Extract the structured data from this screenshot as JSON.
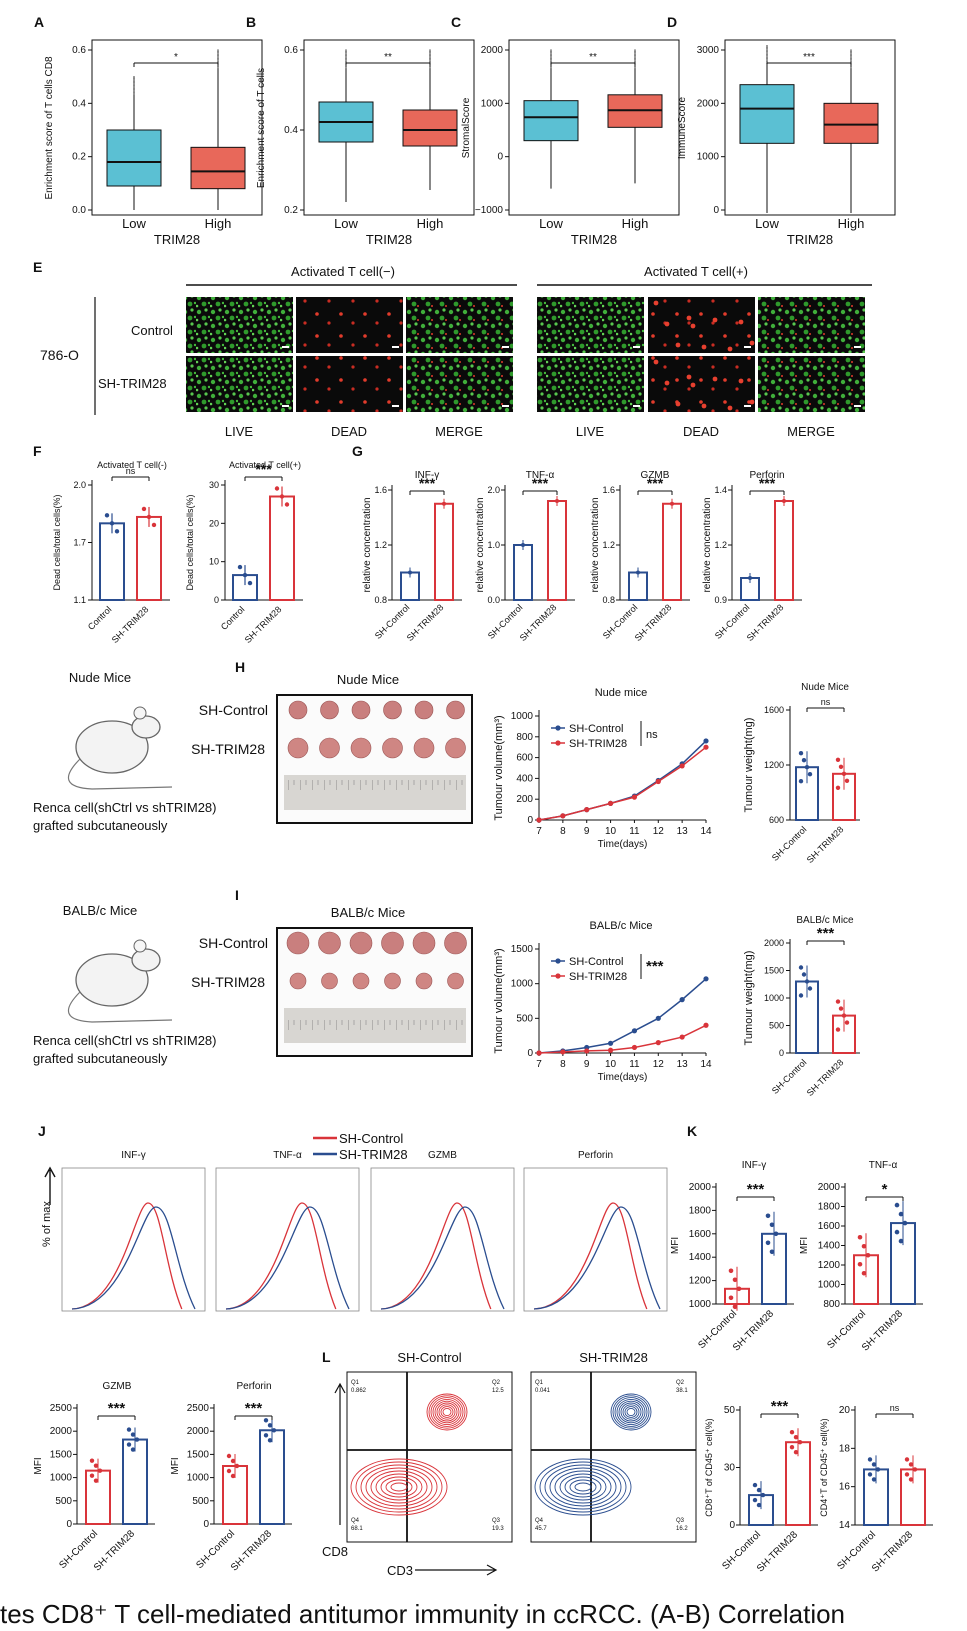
{
  "panels": {
    "A": {
      "letter": "A",
      "ylabel": "Enrichment score of T cells CD8",
      "ticks": [
        "0.6",
        "0.4",
        "0.2",
        "0.0"
      ],
      "xcats": [
        "Low",
        "High"
      ],
      "xlabel": "TRIM28",
      "sig": "*"
    },
    "B": {
      "letter": "B",
      "ylabel": "Enrichment score of T cells",
      "ticks": [
        "0.6",
        "0.4",
        "0.2"
      ],
      "xcats": [
        "Low",
        "High"
      ],
      "xlabel": "TRIM28",
      "sig": "**"
    },
    "C": {
      "letter": "C",
      "ylabel": "StromalScore",
      "ticks": [
        "2000",
        "1000",
        "0",
        "−1000"
      ],
      "xcats": [
        "Low",
        "High"
      ],
      "xlabel": "TRIM28",
      "sig": "**"
    },
    "D": {
      "letter": "D",
      "ylabel": "ImmuneScore",
      "ticks": [
        "3000",
        "2000",
        "1000",
        "0"
      ],
      "xcats": [
        "Low",
        "High"
      ],
      "xlabel": "TRIM28",
      "sig": "***"
    },
    "E": {
      "letter": "E",
      "group_neg": "Activated T cell(−)",
      "group_pos": "Activated T cell(+)",
      "cell_line": "786-O",
      "rows": [
        "Control",
        "SH-TRIM28"
      ],
      "cols": [
        "LIVE",
        "DEAD",
        "MERGE",
        "LIVE",
        "DEAD",
        "MERGE"
      ]
    },
    "F": {
      "letter": "F",
      "ylabel": "Dead cells/total cells(%)",
      "sub1_title": "Activated T cell(-)",
      "sub2_title": "Activated T cell(+)",
      "sub1_ticks": [
        "2.0",
        "1.7",
        "1.1"
      ],
      "sub2_ticks": [
        "30",
        "20",
        "10",
        "0"
      ],
      "sub1_sig": "ns",
      "sub2_sig": "***",
      "xcats": [
        "Control",
        "SH-TRIM28"
      ]
    },
    "G": {
      "letter": "G",
      "ylabel": "relative concentration",
      "titles": [
        "INF-γ",
        "TNF-α",
        "GZMB",
        "Perforin"
      ],
      "ticks": [
        [
          "1.6",
          "1.2",
          "0.8"
        ],
        [
          "2.0",
          "1.0",
          "0.0"
        ],
        [
          "1.6",
          "1.2",
          "0.8"
        ],
        [
          "1.4",
          "1.2",
          "0.9"
        ]
      ],
      "sig": "***",
      "xcats": [
        "SH-Control",
        "SH-TRIM28"
      ]
    },
    "H": {
      "letter": "H",
      "mouse_title": "Nude Mice",
      "photo_title": "Nude Mice",
      "photo_rows": [
        "SH-Control",
        "SH-TRIM28"
      ],
      "graft_line1": "Renca cell(shCtrl vs shTRIM28)",
      "graft_line2": "grafted subcutaneously",
      "line_title": "Nude mice",
      "line_ylabel": "Tumour volume(mm³)",
      "line_xlabel": "Time(days)",
      "line_sig": "ns",
      "bar_title": "Nude Mice",
      "bar_ylabel": "Tumour weight(mg)",
      "bar_sig": "ns",
      "bar_ticks": [
        "1600",
        "1200",
        "600"
      ],
      "line_yticks": [
        "1000",
        "800",
        "600",
        "400",
        "200",
        "0"
      ]
    },
    "I": {
      "letter": "I",
      "mouse_title": "BALB/c Mice",
      "photo_title": "BALB/c Mice",
      "photo_rows": [
        "SH-Control",
        "SH-TRIM28"
      ],
      "graft_line1": "Renca cell(shCtrl vs shTRIM28)",
      "graft_line2": "grafted subcutaneously",
      "line_title": "BALB/c Mice",
      "line_ylabel": "Tumour volume(mm³)",
      "line_xlabel": "Time(days)",
      "line_sig": "***",
      "bar_title": "BALB/c Mice",
      "bar_ylabel": "Tumour weight(mg)",
      "bar_sig": "***",
      "bar_ticks": [
        "2000",
        "1500",
        "1000",
        "500",
        "0"
      ],
      "line_yticks": [
        "1500",
        "1000",
        "500",
        "0"
      ]
    },
    "J": {
      "letter": "J",
      "legend": [
        "SH-Control",
        "SH-TRIM28"
      ],
      "ylabel": "% of max",
      "titles": [
        "INF-γ",
        "TNF-α",
        "GZMB",
        "Perforin"
      ]
    },
    "K": {
      "letter": "K",
      "titles": [
        "INF-γ",
        "TNF-α"
      ],
      "ylabel": "MFI",
      "sigs": [
        "***",
        "*"
      ],
      "ticks1": [
        "2000",
        "1800",
        "1600",
        "1400",
        "1200",
        "1000"
      ],
      "ticks2": [
        "2000",
        "1800",
        "1600",
        "1400",
        "1200",
        "1000",
        "800"
      ]
    },
    "JK2": {
      "titles": [
        "GZMB",
        "Perforin"
      ],
      "ylabel": "MFI",
      "sig": "***",
      "ticks": [
        "2500",
        "2000",
        "1500",
        "1000",
        "500",
        "0"
      ]
    },
    "L": {
      "letter": "L",
      "titles": [
        "SH-Control",
        "SH-TRIM28"
      ],
      "xlabel": "CD3",
      "ylabel": "CD8",
      "quads_ctrl": [
        "Q1",
        "0.862",
        "Q2",
        "12.5",
        "Q4",
        "68.1",
        "Q3",
        "19.3"
      ],
      "quads_trim": [
        "Q1",
        "0.041",
        "Q2",
        "38.1",
        "Q4",
        "45.7",
        "Q3",
        "16.2"
      ],
      "bar1_ylabel": "CD8⁺T of CD45⁺ cell(%)",
      "bar1_sig": "***",
      "bar1_ticks": [
        "50",
        "30",
        "0"
      ],
      "bar2_ylabel": "CD4⁺T of CD45⁺ cell(%)",
      "bar2_sig": "ns",
      "bar2_ticks": [
        "20",
        "18",
        "16",
        "14"
      ]
    },
    "xcats_ctrl": [
      "SH-Control",
      "SH-TRIM28"
    ]
  },
  "caption_fragment": "tes CD8⁺ T cell-mediated antitumor immunity in ccRCC. (A-B) Correlation",
  "colors": {
    "low_box": "#5bc0d3",
    "high_box": "#e8685a",
    "ctrl": "#2a4d8f",
    "trim": "#d9343a",
    "micro_green": "#3fae3a",
    "micro_bg": "#0a0a0a"
  },
  "chart_data": [
    {
      "type": "bar",
      "title": "Nude Mice",
      "categories": [
        "SH-Control",
        "SH-TRIM28"
      ],
      "values": [
        1080,
        1020
      ],
      "ylabel": "Tumour weight(mg)",
      "ylim": [
        600,
        1600
      ]
    },
    {
      "type": "line",
      "title": "Nude mice",
      "x": [
        7,
        8,
        9,
        10,
        11,
        12,
        13,
        14
      ],
      "series": [
        {
          "name": "SH-Control",
          "values": [
            0,
            40,
            100,
            160,
            230,
            380,
            540,
            760
          ]
        },
        {
          "name": "SH-TRIM28",
          "values": [
            0,
            40,
            100,
            160,
            220,
            370,
            520,
            700
          ]
        }
      ],
      "xlabel": "Time(days)",
      "ylabel": "Tumour volume(mm³)",
      "ylim": [
        0,
        1000
      ]
    },
    {
      "type": "line",
      "title": "BALB/c Mice",
      "x": [
        7,
        8,
        9,
        10,
        11,
        12,
        13,
        14
      ],
      "series": [
        {
          "name": "SH-Control",
          "values": [
            0,
            30,
            80,
            140,
            320,
            500,
            770,
            1070
          ]
        },
        {
          "name": "SH-TRIM28",
          "values": [
            0,
            15,
            30,
            40,
            80,
            150,
            230,
            400
          ]
        }
      ],
      "xlabel": "Time(days)",
      "ylabel": "Tumour volume(mm³)",
      "ylim": [
        0,
        1500
      ]
    },
    {
      "type": "bar",
      "title": "BALB/c Mice",
      "categories": [
        "SH-Control",
        "SH-TRIM28"
      ],
      "values": [
        1300,
        680
      ],
      "ylabel": "Tumour weight(mg)",
      "ylim": [
        0,
        2000
      ]
    }
  ]
}
